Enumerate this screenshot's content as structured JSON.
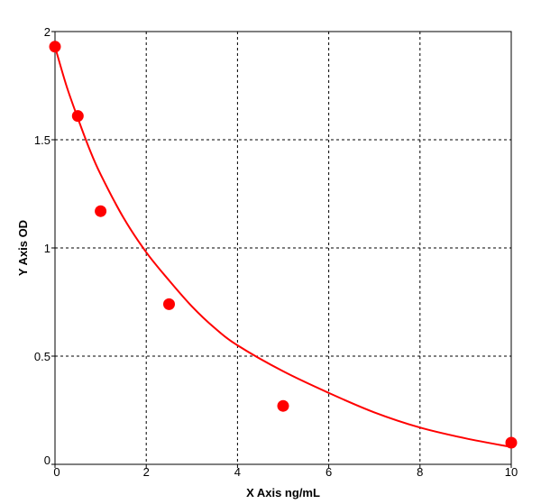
{
  "chart_data": {
    "type": "scatter",
    "xlabel": "X Axis ng/mL",
    "ylabel": "Y Axis OD",
    "xlim": [
      0,
      10
    ],
    "ylim": [
      0,
      2
    ],
    "x_ticks": [
      0,
      2,
      4,
      6,
      8,
      10
    ],
    "y_ticks": [
      0,
      0.5,
      1,
      1.5,
      2
    ],
    "x_tick_labels": [
      "0",
      "2",
      "4",
      "6",
      "8",
      "10"
    ],
    "y_tick_labels": [
      "0",
      "0.5",
      "1",
      "1.5",
      "2"
    ],
    "grid": true,
    "grid_style": "dashed",
    "series": [
      {
        "points": [
          {
            "x": 0,
            "y": 1.93
          },
          {
            "x": 0.5,
            "y": 1.61
          },
          {
            "x": 1,
            "y": 1.17
          },
          {
            "x": 2.5,
            "y": 0.74
          },
          {
            "x": 5,
            "y": 0.27
          },
          {
            "x": 10,
            "y": 0.1
          }
        ],
        "color": "#ff0000"
      }
    ],
    "fit_curve": {
      "color": "#ff0000",
      "points": [
        {
          "x": 0,
          "y": 1.93
        },
        {
          "x": 0.25,
          "y": 1.75
        },
        {
          "x": 0.5,
          "y": 1.6
        },
        {
          "x": 0.75,
          "y": 1.46
        },
        {
          "x": 1,
          "y": 1.34
        },
        {
          "x": 1.5,
          "y": 1.14
        },
        {
          "x": 2,
          "y": 0.98
        },
        {
          "x": 2.5,
          "y": 0.85
        },
        {
          "x": 3,
          "y": 0.73
        },
        {
          "x": 3.5,
          "y": 0.63
        },
        {
          "x": 4,
          "y": 0.55
        },
        {
          "x": 5,
          "y": 0.43
        },
        {
          "x": 6,
          "y": 0.33
        },
        {
          "x": 7,
          "y": 0.24
        },
        {
          "x": 8,
          "y": 0.17
        },
        {
          "x": 9,
          "y": 0.12
        },
        {
          "x": 10,
          "y": 0.08
        }
      ]
    }
  }
}
